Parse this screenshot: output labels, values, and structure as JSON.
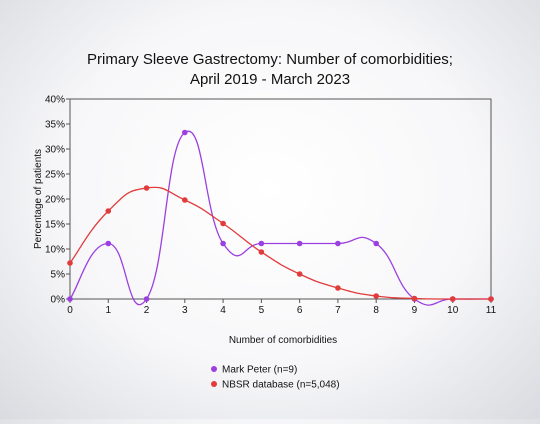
{
  "chart_data": {
    "type": "line",
    "title_lines": [
      "Primary Sleeve Gastrectomy: Number of comorbidities;",
      "April 2019 - March 2023"
    ],
    "xlabel": "Number of comorbidities",
    "ylabel": "Percentage of patients",
    "x": [
      0,
      1,
      2,
      3,
      4,
      5,
      6,
      7,
      8,
      9,
      10,
      11
    ],
    "x_ticks": [
      "0",
      "1",
      "2",
      "3",
      "4",
      "5",
      "6",
      "7",
      "8",
      "9",
      "10",
      "11"
    ],
    "ylim": [
      0,
      40
    ],
    "y_ticks": [
      "0%",
      "5%",
      "10%",
      "15%",
      "20%",
      "25%",
      "30%",
      "35%",
      "40%"
    ],
    "grid": false,
    "legend_position": "bottom-left",
    "series": [
      {
        "name": "Mark Peter (n=9)",
        "color": "#9b3fe0",
        "values": [
          0,
          11.1,
          0,
          33.3,
          11.1,
          11.1,
          11.1,
          11.1,
          11.1,
          0,
          0,
          0
        ]
      },
      {
        "name": "NBSR database (n=5,048)",
        "color": "#e23b3b",
        "values": [
          7.2,
          17.6,
          22.2,
          19.8,
          15.1,
          9.4,
          5.0,
          2.2,
          0.6,
          0.1,
          0.0,
          0.0
        ]
      }
    ]
  }
}
